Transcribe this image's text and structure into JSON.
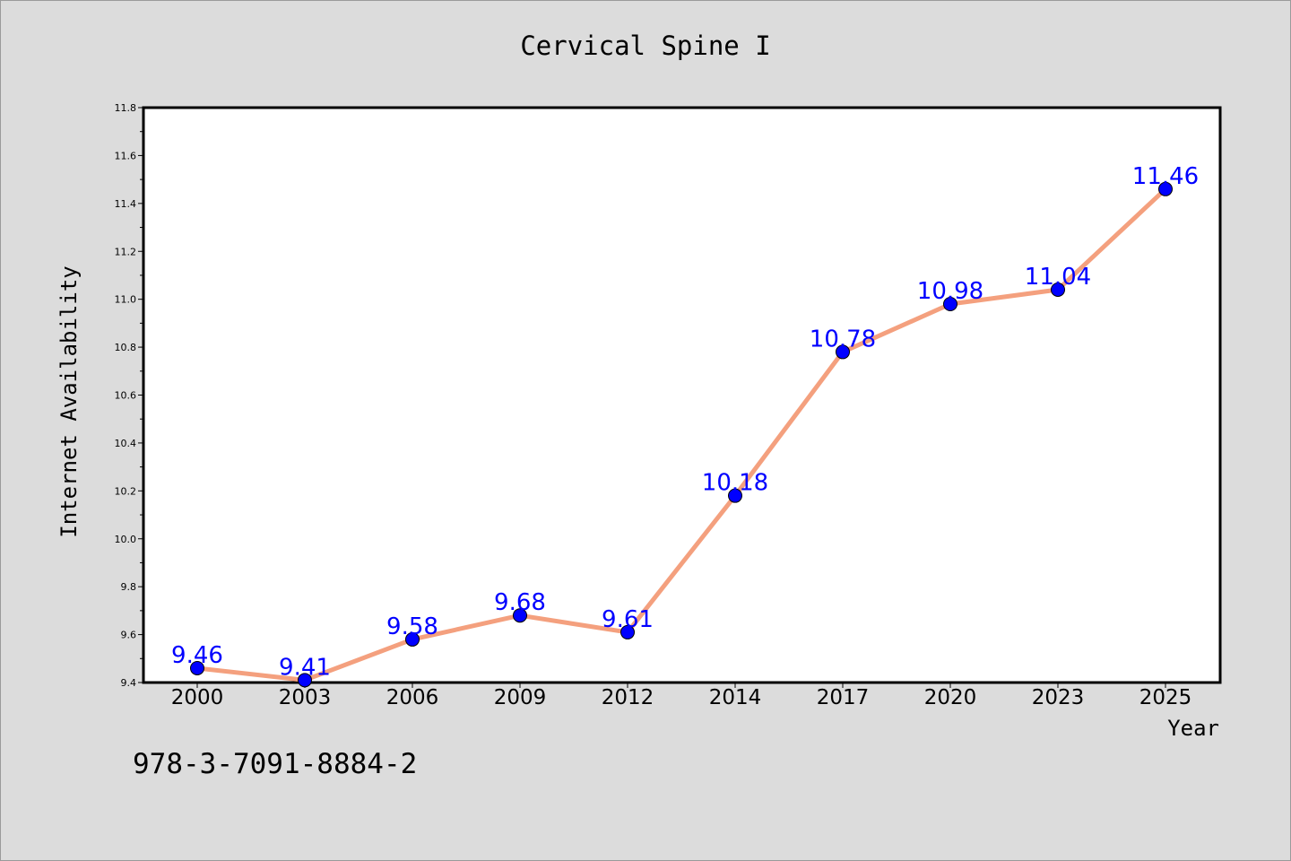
{
  "chart_data": {
    "type": "line",
    "title": "Cervical Spine I",
    "xlabel": "Year",
    "ylabel": "Internet Availability",
    "categories": [
      "2000",
      "2003",
      "2006",
      "2009",
      "2012",
      "2014",
      "2017",
      "2020",
      "2023",
      "2025"
    ],
    "values": [
      9.46,
      9.41,
      9.58,
      9.68,
      9.61,
      10.18,
      10.78,
      10.98,
      11.04,
      11.46
    ],
    "data_labels": [
      "9.46",
      "9.41",
      "9.58",
      "9.68",
      "9.61",
      "10.18",
      "10.78",
      "10.98",
      "11.04",
      "11.46"
    ],
    "ylim": [
      9.4,
      11.8
    ],
    "y_ticks": [
      "9.4",
      "9.6",
      "9.8",
      "10.0",
      "10.2",
      "10.4",
      "10.6",
      "10.8",
      "11.0",
      "11.2",
      "11.4",
      "11.6",
      "11.8"
    ],
    "grid": false,
    "legend": "none",
    "colors": {
      "line": "#f4a07e",
      "marker": "#0000ff",
      "data_label": "#0000ff"
    }
  },
  "footer": {
    "code": "978-3-7091-8884-2"
  }
}
